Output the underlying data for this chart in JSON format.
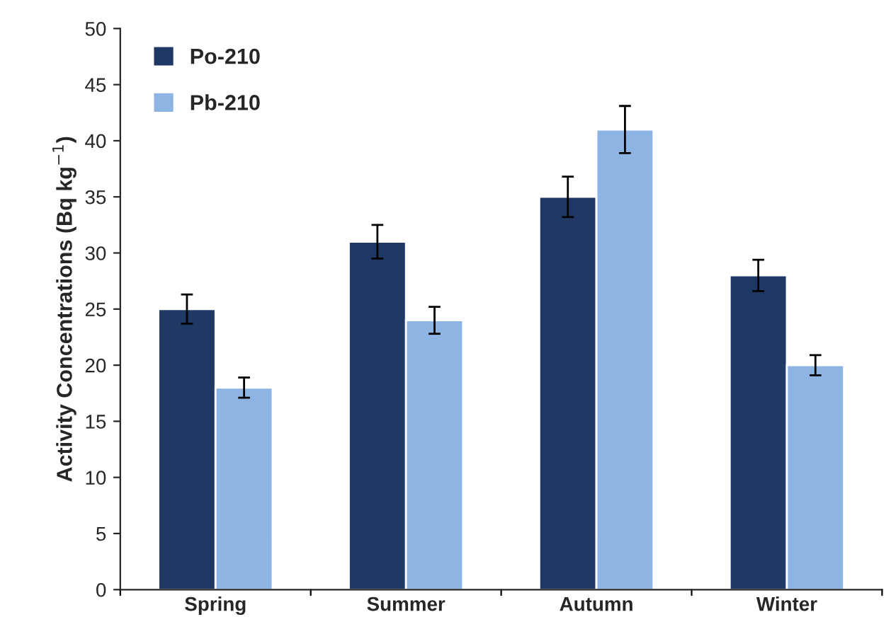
{
  "chart_data": {
    "type": "bar",
    "ylabel": "Activity Concentrations (Bq kg$^{−1}$)",
    "categories": [
      "Spring",
      "Summer",
      "Autumn",
      "Winter"
    ],
    "series": [
      {
        "name": "Po-210",
        "color": "#1f3864",
        "values": [
          25,
          31,
          35,
          28
        ],
        "errors": [
          1.3,
          1.5,
          1.8,
          1.4
        ]
      },
      {
        "name": "Pb-210",
        "color": "#8eb4e3",
        "values": [
          18,
          24,
          41,
          20
        ],
        "errors": [
          0.9,
          1.2,
          2.1,
          0.9
        ]
      }
    ],
    "ylim": [
      0,
      50
    ],
    "yticks": [
      0,
      5,
      10,
      15,
      20,
      25,
      30,
      35,
      40,
      45,
      50
    ],
    "grid": false,
    "legend": "top left"
  }
}
